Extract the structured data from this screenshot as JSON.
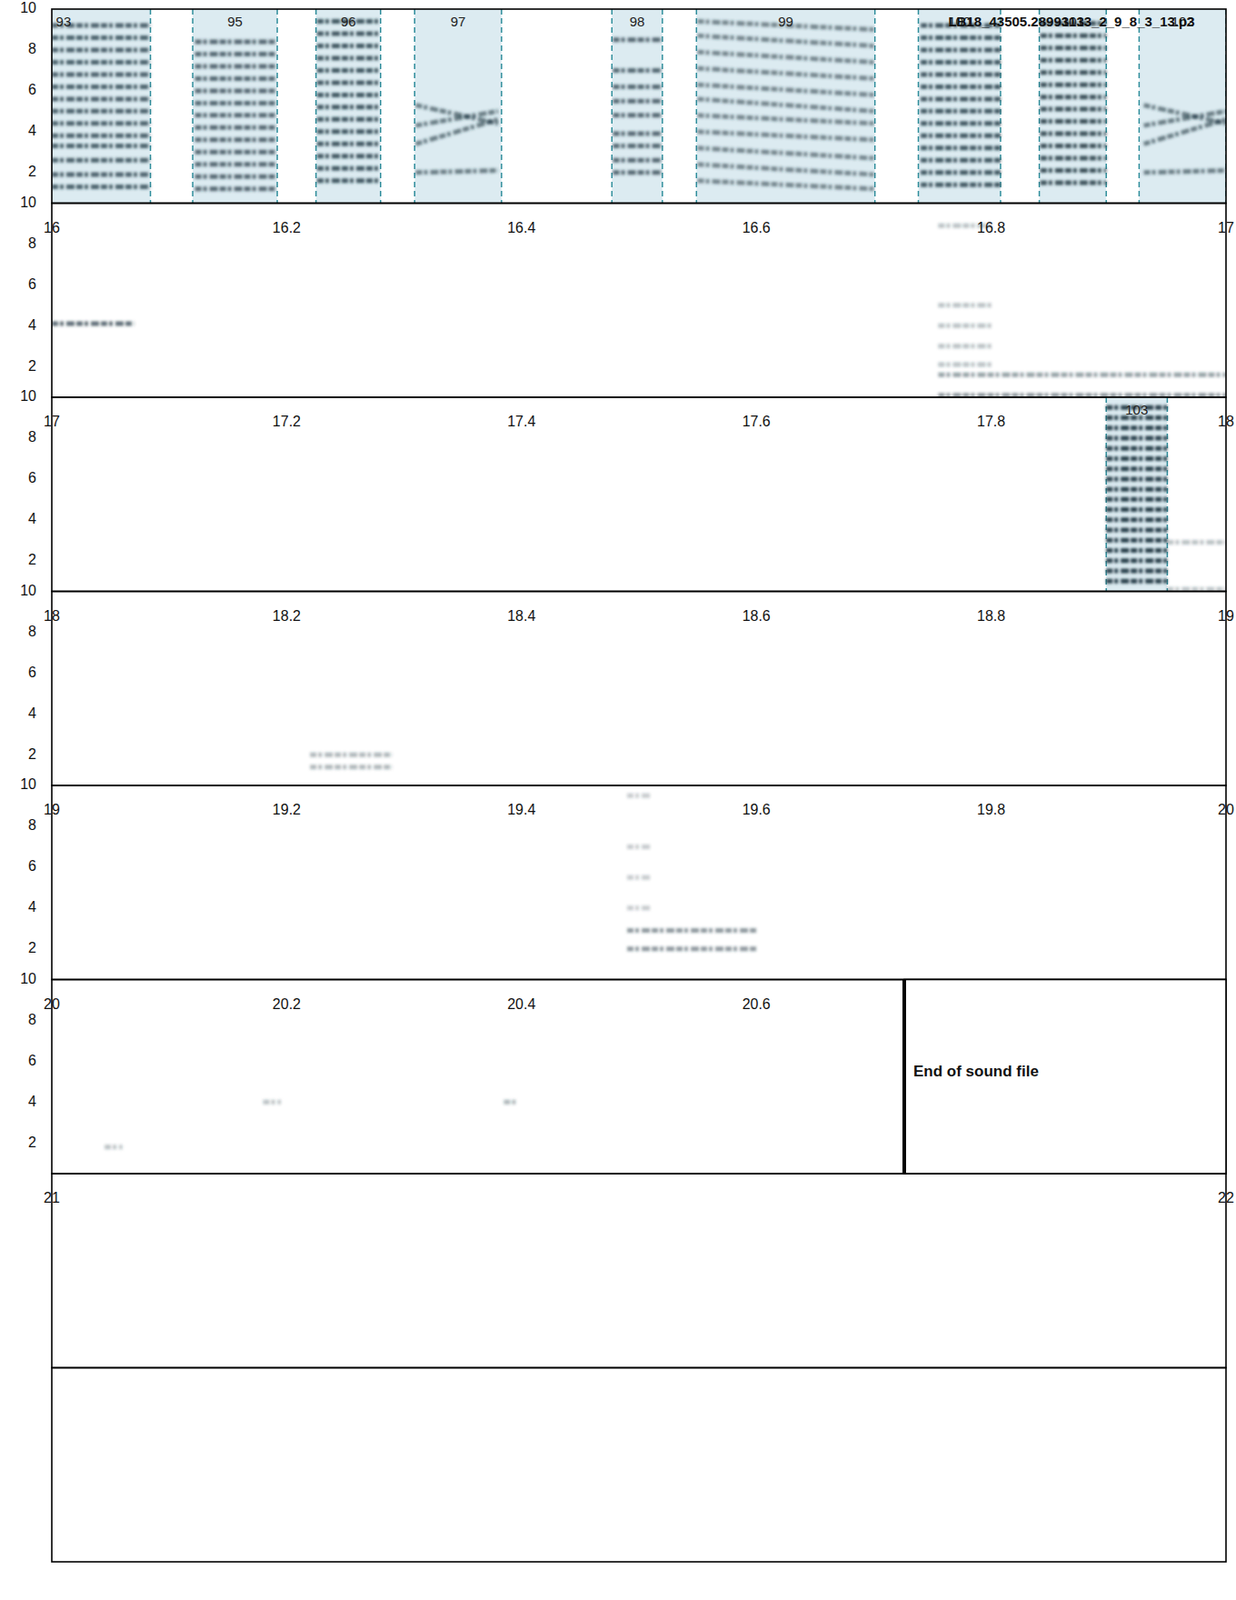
{
  "chart_data": [
    {
      "type": "spectrogram",
      "title": "LB18_43505.28993133_2_9_8_3_13.p3",
      "tick_labels": "y",
      "xlim": [
        15,
        16
      ],
      "ylim": [
        0.5,
        10
      ],
      "yticks": [
        2,
        4,
        6,
        8,
        10
      ],
      "selections": [
        {
          "label": "93",
          "start": 14.936,
          "end": 15.084
        },
        {
          "label": "95",
          "start": 15.12,
          "end": 15.192
        },
        {
          "label": "96",
          "start": 15.225,
          "end": 15.28
        },
        {
          "label": "97",
          "start": 15.309,
          "end": 15.383
        },
        {
          "label": "98",
          "start": 15.477,
          "end": 15.52
        },
        {
          "label": "99",
          "start": 15.549,
          "end": 15.701
        },
        {
          "label": "100",
          "start": 15.738,
          "end": 15.808
        },
        {
          "label": "101",
          "start": 15.841,
          "end": 15.898
        },
        {
          "label": "102",
          "start": 15.926,
          "end": 16.0
        }
      ],
      "sounds": [
        {
          "start": 15.0,
          "end": 15.084,
          "level": 0.75,
          "bands": [
            [
              1.3,
              1.3
            ],
            [
              1.9,
              1.9
            ],
            [
              2.6,
              2.6
            ],
            [
              3.3,
              3.3
            ],
            [
              3.8,
              3.8
            ],
            [
              4.4,
              4.4
            ],
            [
              5.0,
              5.0
            ],
            [
              5.6,
              5.6
            ],
            [
              6.2,
              6.2
            ],
            [
              6.8,
              6.8
            ],
            [
              7.4,
              7.4
            ],
            [
              8.0,
              8.0
            ],
            [
              8.6,
              8.6
            ],
            [
              9.2,
              9.2
            ]
          ]
        },
        {
          "start": 15.122,
          "end": 15.19,
          "level": 0.7,
          "bands": [
            [
              1.2,
              1.2
            ],
            [
              1.8,
              1.8
            ],
            [
              2.4,
              2.4
            ],
            [
              3.0,
              3.0
            ],
            [
              3.6,
              3.6
            ],
            [
              4.2,
              4.2
            ],
            [
              4.8,
              4.8
            ],
            [
              5.4,
              5.4
            ],
            [
              6.0,
              6.0
            ],
            [
              6.6,
              6.6
            ],
            [
              7.2,
              7.2
            ],
            [
              7.8,
              7.8
            ],
            [
              8.4,
              8.4
            ]
          ]
        },
        {
          "start": 15.226,
          "end": 15.28,
          "level": 0.8,
          "bands": [
            [
              1.6,
              1.6
            ],
            [
              2.2,
              2.2
            ],
            [
              2.8,
              2.8
            ],
            [
              3.4,
              3.4
            ],
            [
              4.0,
              4.0
            ],
            [
              4.6,
              4.6
            ],
            [
              5.2,
              5.2
            ],
            [
              5.8,
              5.8
            ],
            [
              6.4,
              6.4
            ],
            [
              7.0,
              7.0
            ],
            [
              7.6,
              7.6
            ],
            [
              8.2,
              8.2
            ],
            [
              8.8,
              8.8
            ],
            [
              9.4,
              9.4
            ]
          ]
        },
        {
          "start": 15.31,
          "end": 15.38,
          "level": 0.6,
          "bands": [
            [
              5.3,
              4.4
            ],
            [
              3.4,
              4.6
            ],
            [
              2.0,
              2.1
            ],
            [
              4.3,
              5.0
            ]
          ]
        },
        {
          "start": 15.478,
          "end": 15.52,
          "level": 0.7,
          "bands": [
            [
              2.0,
              2.0
            ],
            [
              2.6,
              2.6
            ],
            [
              3.3,
              3.3
            ],
            [
              3.9,
              3.9
            ],
            [
              4.8,
              4.8
            ],
            [
              5.5,
              5.5
            ],
            [
              6.2,
              6.2
            ],
            [
              7.0,
              7.0
            ],
            [
              8.5,
              8.5
            ]
          ]
        },
        {
          "start": 15.55,
          "end": 15.7,
          "level": 0.55,
          "bands": [
            [
              1.6,
              1.2
            ],
            [
              2.4,
              1.9
            ],
            [
              3.2,
              2.7
            ],
            [
              4.0,
              3.6
            ],
            [
              4.8,
              4.4
            ],
            [
              5.6,
              5.0
            ],
            [
              6.3,
              5.8
            ],
            [
              7.1,
              6.6
            ],
            [
              7.9,
              7.4
            ],
            [
              8.7,
              8.2
            ],
            [
              9.4,
              9.0
            ]
          ]
        },
        {
          "start": 15.74,
          "end": 15.808,
          "level": 0.8,
          "bands": [
            [
              1.4,
              1.4
            ],
            [
              2.0,
              2.0
            ],
            [
              2.6,
              2.6
            ],
            [
              3.2,
              3.2
            ],
            [
              3.8,
              3.8
            ],
            [
              4.4,
              4.4
            ],
            [
              5.0,
              5.0
            ],
            [
              5.6,
              5.6
            ],
            [
              6.2,
              6.2
            ],
            [
              6.8,
              6.8
            ],
            [
              7.4,
              7.4
            ],
            [
              8.0,
              8.0
            ],
            [
              8.6,
              8.6
            ],
            [
              9.2,
              9.2
            ]
          ]
        },
        {
          "start": 15.842,
          "end": 15.898,
          "level": 0.85,
          "bands": [
            [
              1.5,
              1.5
            ],
            [
              2.1,
              2.1
            ],
            [
              2.7,
              2.7
            ],
            [
              3.3,
              3.3
            ],
            [
              3.9,
              3.9
            ],
            [
              4.5,
              4.5
            ],
            [
              5.1,
              5.1
            ],
            [
              5.7,
              5.7
            ],
            [
              6.3,
              6.3
            ],
            [
              6.9,
              6.9
            ],
            [
              7.5,
              7.5
            ],
            [
              8.1,
              8.1
            ],
            [
              8.7,
              8.7
            ],
            [
              9.3,
              9.3
            ]
          ]
        },
        {
          "start": 15.93,
          "end": 16.0,
          "level": 0.6,
          "bands": [
            [
              5.3,
              4.4
            ],
            [
              3.4,
              4.6
            ],
            [
              2.0,
              2.1
            ],
            [
              4.3,
              5.0
            ]
          ]
        }
      ]
    },
    {
      "type": "spectrogram",
      "xlim": [
        16,
        17
      ],
      "xticks": [
        16,
        16.2,
        16.4,
        16.6,
        16.8,
        17
      ],
      "ylim": [
        0.5,
        10
      ],
      "yticks": [
        2,
        4,
        6,
        8,
        10
      ],
      "sounds": [
        {
          "start": 16.0,
          "end": 16.07,
          "level": 0.7,
          "bands": [
            [
              4.1,
              4.1
            ]
          ]
        },
        {
          "start": 16.755,
          "end": 16.8,
          "level": 0.3,
          "bands": [
            [
              2.1,
              2.1
            ],
            [
              3.0,
              3.0
            ],
            [
              4.0,
              4.0
            ],
            [
              5.0,
              5.0
            ],
            [
              8.9,
              8.9
            ]
          ]
        },
        {
          "start": 16.755,
          "end": 17.0,
          "level": 0.45,
          "bands": [
            [
              1.6,
              1.6
            ]
          ]
        },
        {
          "start": 16.755,
          "end": 17.0,
          "level": 0.5,
          "bands": [
            [
              0.6,
              0.6
            ]
          ]
        }
      ]
    },
    {
      "type": "spectrogram",
      "xlim": [
        17,
        18
      ],
      "xticks": [
        17,
        17.2,
        17.4,
        17.6,
        17.8,
        18
      ],
      "ylim": [
        0.5,
        10
      ],
      "yticks": [
        2,
        4,
        6,
        8,
        10
      ],
      "selections": [
        {
          "label": "103",
          "start": 17.898,
          "end": 17.95
        }
      ],
      "sounds": [
        {
          "start": 17.898,
          "end": 17.95,
          "level": 0.95,
          "bands": [
            [
              1.0,
              1.0
            ],
            [
              1.5,
              1.5
            ],
            [
              2.0,
              2.0
            ],
            [
              2.5,
              2.5
            ],
            [
              3.0,
              3.0
            ],
            [
              3.5,
              3.5
            ],
            [
              4.0,
              4.0
            ],
            [
              4.5,
              4.5
            ],
            [
              5.0,
              5.0
            ],
            [
              5.5,
              5.5
            ],
            [
              6.0,
              6.0
            ],
            [
              6.5,
              6.5
            ],
            [
              7.0,
              7.0
            ],
            [
              7.5,
              7.5
            ],
            [
              8.0,
              8.0
            ],
            [
              8.5,
              8.5
            ],
            [
              9.0,
              9.0
            ],
            [
              9.5,
              9.5
            ]
          ]
        },
        {
          "start": 17.95,
          "end": 18.0,
          "level": 0.3,
          "bands": [
            [
              0.6,
              0.6
            ],
            [
              2.9,
              2.9
            ]
          ]
        }
      ]
    },
    {
      "type": "spectrogram",
      "xlim": [
        18,
        19
      ],
      "xticks": [
        18,
        18.2,
        18.4,
        18.6,
        18.8,
        19
      ],
      "ylim": [
        0.5,
        10
      ],
      "yticks": [
        2,
        4,
        6,
        8,
        10
      ],
      "sounds": [
        {
          "start": 18.22,
          "end": 18.29,
          "level": 0.35,
          "bands": [
            [
              2.0,
              2.0
            ],
            [
              1.4,
              1.4
            ]
          ]
        }
      ]
    },
    {
      "type": "spectrogram",
      "xlim": [
        19,
        20
      ],
      "xticks": [
        19,
        19.2,
        19.4,
        19.6,
        19.8,
        20
      ],
      "ylim": [
        0.5,
        10
      ],
      "yticks": [
        2,
        4,
        6,
        8,
        10
      ],
      "sounds": [
        {
          "start": 19.49,
          "end": 19.6,
          "level": 0.5,
          "bands": [
            [
              2.0,
              2.0
            ],
            [
              2.9,
              2.9
            ]
          ]
        },
        {
          "start": 19.49,
          "end": 19.51,
          "level": 0.25,
          "bands": [
            [
              4.0,
              4.0
            ],
            [
              5.5,
              5.5
            ],
            [
              7.0,
              7.0
            ],
            [
              9.5,
              9.5
            ]
          ]
        }
      ]
    },
    {
      "type": "spectrogram",
      "xlim": [
        20,
        21
      ],
      "xticks": [
        20,
        20.2,
        20.4,
        20.6
      ],
      "ylim": [
        0.5,
        10
      ],
      "yticks": [
        2,
        4,
        6,
        8,
        10
      ],
      "sounds": [
        {
          "start": 20.045,
          "end": 20.06,
          "level": 0.3,
          "bands": [
            [
              1.8,
              1.8
            ]
          ]
        },
        {
          "start": 20.18,
          "end": 20.195,
          "level": 0.3,
          "bands": [
            [
              4.0,
              4.0
            ]
          ]
        },
        {
          "start": 20.385,
          "end": 20.395,
          "level": 0.35,
          "bands": [
            [
              4.0,
              4.0
            ]
          ]
        }
      ],
      "end_of_file": {
        "time": 20.726,
        "label": "End of sound file"
      }
    },
    {
      "type": "spectrogram",
      "tick_labels": "x",
      "xlim": [
        21,
        22
      ],
      "xticks": [
        21,
        22
      ]
    },
    {
      "type": "spectrogram",
      "tick_labels": false
    }
  ]
}
